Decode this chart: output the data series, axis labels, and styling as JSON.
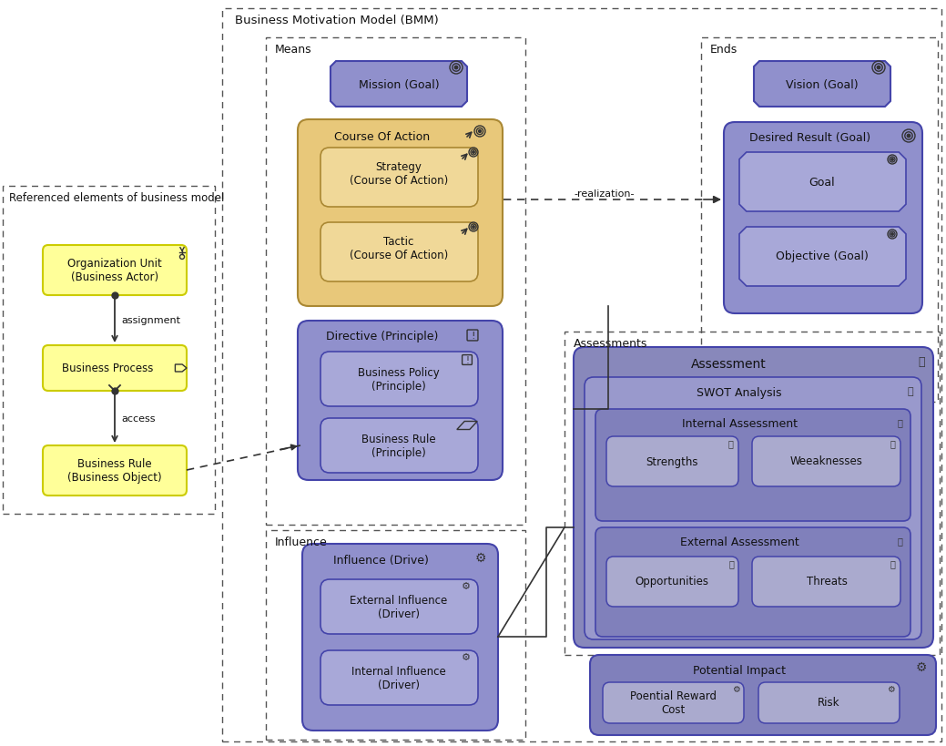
{
  "bg_color": "#ffffff",
  "title": "Business Motivation Model (BMM)",
  "means_label": "Means",
  "ends_label": "Ends",
  "assessments_label": "Assessments",
  "influence_label": "Influence",
  "ref_label": "Referenced elements of business model",
  "col_blue": "#9090cc",
  "col_blue_inner": "#a0a0dd",
  "col_tan": "#e8c87a",
  "col_tan_inner": "#f0d898",
  "col_blue_dark": "#8080bb",
  "col_purple_inner": "#a8a8d8",
  "col_yellow": "#ffff99",
  "col_yellow_border": "#cccc00",
  "col_purple_mid": "#9898cc",
  "col_assessment": "#8888bb",
  "col_assess_inner": "#9999cc",
  "col_small": "#aaaace"
}
